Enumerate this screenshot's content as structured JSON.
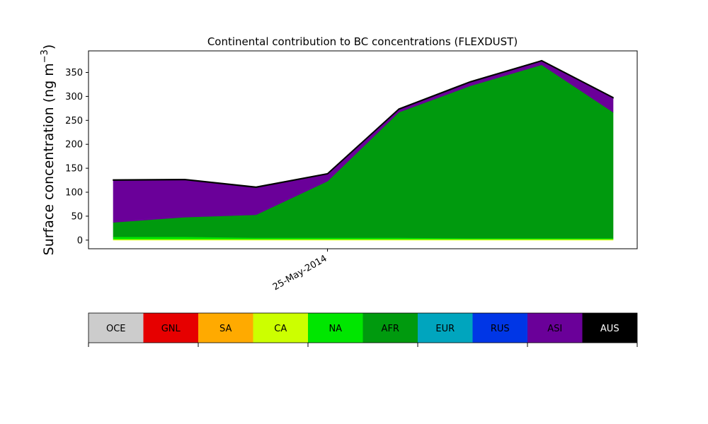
{
  "chart_data": {
    "type": "area",
    "stacked": true,
    "title": "Continental contribution to BC concentrations (FLEXDUST)",
    "ylabel": "Surface concentration (ng m",
    "ylabel_unit_sup": "−3",
    "ylabel_close": ")",
    "xlabel": "",
    "ylim": [
      -18,
      395
    ],
    "yticks": [
      0,
      50,
      100,
      150,
      200,
      250,
      300,
      350
    ],
    "x_ticks": [
      {
        "index": 3,
        "label": "25-May-2014"
      }
    ],
    "x": [
      0,
      1,
      2,
      3,
      4,
      5,
      6,
      7
    ],
    "legend_position": "below",
    "series": [
      {
        "name": "OCE",
        "color": "#cccccc",
        "values": [
          0,
          0,
          0,
          0,
          0,
          0,
          0,
          0
        ]
      },
      {
        "name": "GNL",
        "color": "#e60000",
        "values": [
          0,
          0,
          0,
          0,
          0,
          0,
          0,
          0
        ]
      },
      {
        "name": "SA",
        "color": "#ffaa00",
        "values": [
          0,
          0,
          0,
          0,
          0,
          0,
          0,
          0
        ]
      },
      {
        "name": "CA",
        "color": "#ccff00",
        "values": [
          2,
          2,
          2,
          2,
          2,
          2,
          2,
          2
        ]
      },
      {
        "name": "NA",
        "color": "#00e600",
        "values": [
          5,
          5,
          3,
          3,
          3,
          2,
          2,
          2
        ]
      },
      {
        "name": "AFR",
        "color": "#009a0e",
        "values": [
          30,
          41,
          48,
          118,
          262,
          318,
          362,
          263
        ]
      },
      {
        "name": "EUR",
        "color": "#00a5be",
        "values": [
          0,
          0,
          0,
          0,
          0,
          0,
          0,
          0
        ]
      },
      {
        "name": "RUS",
        "color": "#0036e6",
        "values": [
          0,
          0,
          0,
          0,
          0,
          0,
          0,
          0
        ]
      },
      {
        "name": "ASI",
        "color": "#6a0099",
        "values": [
          88,
          78,
          57,
          15,
          6,
          8,
          8,
          30
        ]
      },
      {
        "name": "AUS",
        "color": "#000000",
        "values": [
          1,
          1,
          1,
          1,
          1,
          1,
          1,
          1
        ]
      }
    ]
  }
}
